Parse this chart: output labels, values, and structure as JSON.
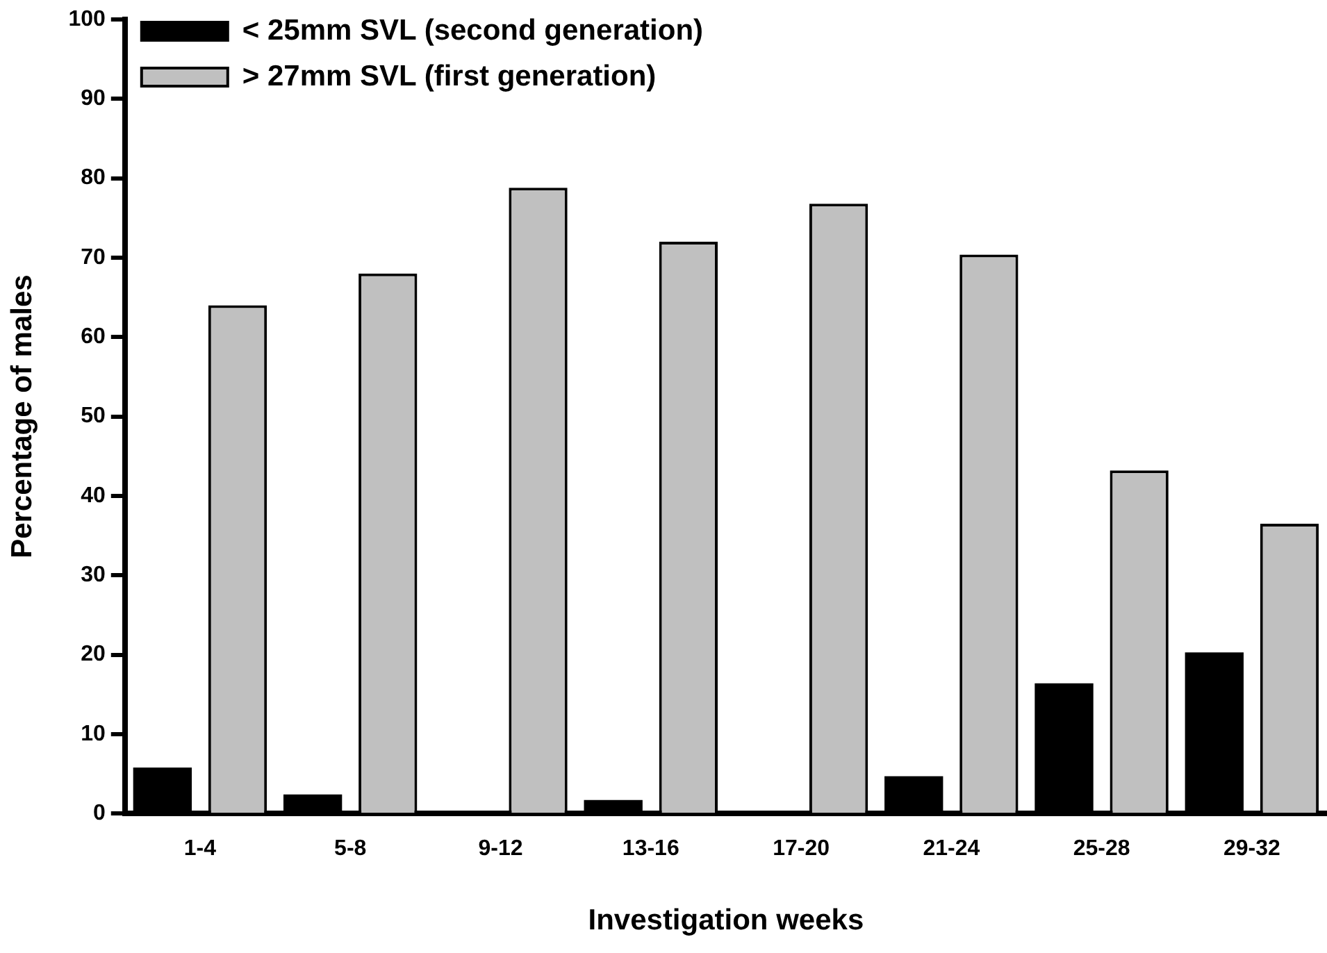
{
  "chart_data": {
    "type": "bar",
    "xlabel": "Investigation weeks",
    "ylabel": "Percentage of males",
    "categories": [
      "1-4",
      "5-8",
      "9-12",
      "13-16",
      "17-20",
      "21-24",
      "25-28",
      "29-32"
    ],
    "series": [
      {
        "name": "< 25mm SVL (second generation)",
        "color": "#000000",
        "values": [
          5.8,
          2.4,
          0,
          1.7,
          0,
          4.7,
          16.4,
          20.3
        ]
      },
      {
        "name": "> 27mm SVL (first generation)",
        "color": "#c0c0c0",
        "values": [
          64,
          68,
          78.8,
          72,
          76.8,
          70.4,
          43.2,
          36.5
        ]
      }
    ],
    "ylim": [
      0,
      100
    ],
    "yticks": [
      0,
      10,
      20,
      30,
      40,
      50,
      60,
      70,
      80,
      90,
      100
    ],
    "grid": false,
    "legend": "top left"
  }
}
